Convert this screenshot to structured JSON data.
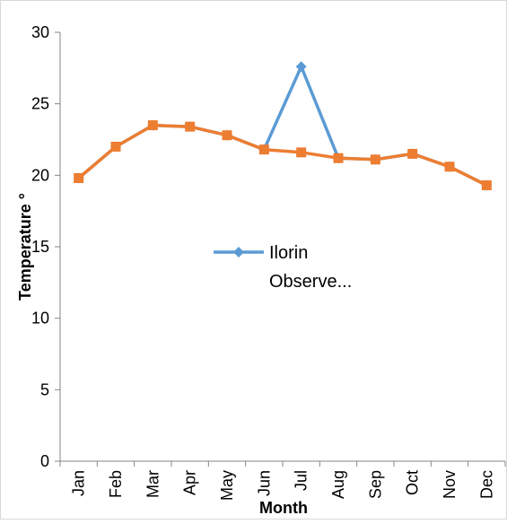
{
  "chart_data": {
    "type": "line",
    "title": "",
    "xlabel": "Month",
    "ylabel": "Temperature °",
    "categories": [
      "Jan",
      "Feb",
      "Mar",
      "Apr",
      "May",
      "Jun",
      "Jul",
      "Aug",
      "Sep",
      "Oct",
      "Nov",
      "Dec"
    ],
    "ylim": [
      0,
      30
    ],
    "yticks": [
      0,
      5,
      10,
      15,
      20,
      25,
      30
    ],
    "grid": false,
    "legend": {
      "position": "center",
      "entries": [
        "Ilorin Observe..."
      ]
    },
    "series": [
      {
        "name": "Ilorin Observe...",
        "color": "#5B9BD5",
        "marker": "diamond",
        "values": [
          19.8,
          22.0,
          23.5,
          23.4,
          22.8,
          21.8,
          27.6,
          21.2,
          21.1,
          21.5,
          20.6,
          19.3
        ]
      },
      {
        "color": "#ED7D31",
        "marker": "square",
        "values": [
          19.8,
          22.0,
          23.5,
          23.4,
          22.8,
          21.8,
          21.6,
          21.2,
          21.1,
          21.5,
          20.6,
          19.3
        ]
      }
    ]
  }
}
